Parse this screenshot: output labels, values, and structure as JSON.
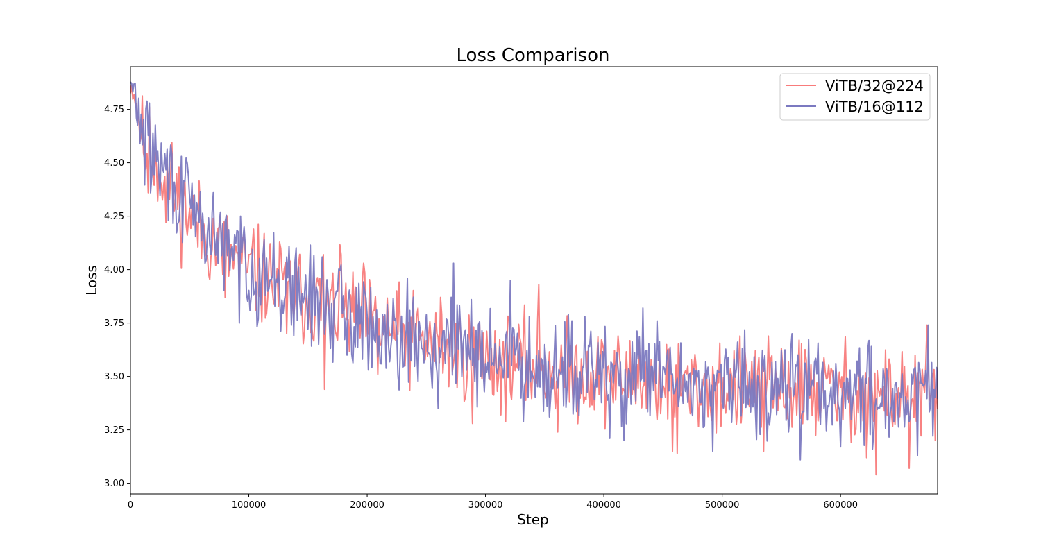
{
  "chart_data": {
    "type": "line",
    "title": "Loss Comparison",
    "xlabel": "Step",
    "ylabel": "Loss",
    "xlim": [
      0,
      682000
    ],
    "ylim": [
      2.95,
      4.95
    ],
    "xticks": [
      0,
      100000,
      200000,
      300000,
      400000,
      500000,
      600000
    ],
    "xtick_labels": [
      "0",
      "100000",
      "200000",
      "300000",
      "400000",
      "500000",
      "600000"
    ],
    "yticks": [
      3.0,
      3.25,
      3.5,
      3.75,
      4.0,
      4.25,
      4.5,
      4.75
    ],
    "ytick_labels": [
      "3.00",
      "3.25",
      "3.50",
      "3.75",
      "4.00",
      "4.25",
      "4.50",
      "4.75"
    ],
    "legend_position": "top-right",
    "sample_interval": 1000,
    "series": [
      {
        "name": "ViTB/32@224",
        "color": "#f87b7b",
        "trend": [
          [
            0,
            4.86
          ],
          [
            3000,
            4.84
          ],
          [
            6000,
            4.74
          ],
          [
            10000,
            4.62
          ],
          [
            20000,
            4.52
          ],
          [
            40000,
            4.33
          ],
          [
            60000,
            4.18
          ],
          [
            80000,
            4.08
          ],
          [
            100000,
            3.99
          ],
          [
            130000,
            3.91
          ],
          [
            160000,
            3.84
          ],
          [
            200000,
            3.75
          ],
          [
            250000,
            3.65
          ],
          [
            300000,
            3.59
          ],
          [
            350000,
            3.54
          ],
          [
            400000,
            3.5
          ],
          [
            450000,
            3.47
          ],
          [
            500000,
            3.45
          ],
          [
            550000,
            3.44
          ],
          [
            600000,
            3.43
          ],
          [
            650000,
            3.41
          ],
          [
            682000,
            3.4
          ]
        ],
        "noise_amplitude": 0.11,
        "seed": 11,
        "spikes": [
          [
            13000,
            4.47
          ],
          [
            15000,
            4.36
          ],
          [
            30000,
            4.22
          ],
          [
            52000,
            4.3
          ],
          [
            80000,
            3.87
          ],
          [
            104000,
            4.19
          ],
          [
            127000,
            4.1
          ],
          [
            132000,
            3.7
          ],
          [
            163000,
            4.07
          ],
          [
            164000,
            3.44
          ],
          [
            178000,
            4.07
          ],
          [
            197000,
            4.03
          ],
          [
            209000,
            3.51
          ],
          [
            222000,
            3.83
          ],
          [
            262000,
            3.87
          ],
          [
            289000,
            3.28
          ],
          [
            313000,
            3.32
          ],
          [
            318000,
            3.65
          ],
          [
            345000,
            3.93
          ],
          [
            361000,
            3.24
          ],
          [
            400000,
            3.62
          ],
          [
            430000,
            3.66
          ],
          [
            458000,
            3.15
          ],
          [
            462000,
            3.14
          ],
          [
            528000,
            3.62
          ],
          [
            535000,
            3.15
          ],
          [
            565000,
            3.67
          ],
          [
            622000,
            3.12
          ],
          [
            630000,
            3.04
          ],
          [
            658000,
            3.07
          ],
          [
            673000,
            3.74
          ],
          [
            680000,
            3.2
          ]
        ]
      },
      {
        "name": "ViTB/16@112",
        "color": "#7b79c0",
        "trend": [
          [
            0,
            4.86
          ],
          [
            3000,
            4.84
          ],
          [
            6000,
            4.75
          ],
          [
            10000,
            4.64
          ],
          [
            20000,
            4.53
          ],
          [
            40000,
            4.35
          ],
          [
            60000,
            4.2
          ],
          [
            80000,
            4.1
          ],
          [
            100000,
            4.0
          ],
          [
            130000,
            3.92
          ],
          [
            160000,
            3.85
          ],
          [
            200000,
            3.76
          ],
          [
            250000,
            3.66
          ],
          [
            300000,
            3.6
          ],
          [
            350000,
            3.55
          ],
          [
            400000,
            3.51
          ],
          [
            450000,
            3.48
          ],
          [
            500000,
            3.46
          ],
          [
            550000,
            3.45
          ],
          [
            600000,
            3.44
          ],
          [
            650000,
            3.42
          ],
          [
            682000,
            3.41
          ]
        ],
        "noise_amplitude": 0.11,
        "seed": 29,
        "spikes": [
          [
            35000,
            4.54
          ],
          [
            43000,
            4.53
          ],
          [
            70000,
            4.36
          ],
          [
            93000,
            4.25
          ],
          [
            113000,
            4.14
          ],
          [
            136000,
            3.74
          ],
          [
            183000,
            3.6
          ],
          [
            201000,
            3.53
          ],
          [
            260000,
            3.35
          ],
          [
            273000,
            4.03
          ],
          [
            288000,
            3.86
          ],
          [
            321000,
            3.95
          ],
          [
            370000,
            3.79
          ],
          [
            405000,
            3.21
          ],
          [
            417000,
            3.2
          ],
          [
            433000,
            3.82
          ],
          [
            445000,
            3.76
          ],
          [
            492000,
            3.15
          ],
          [
            559000,
            3.7
          ],
          [
            566000,
            3.11
          ],
          [
            600000,
            3.17
          ],
          [
            627000,
            3.16
          ],
          [
            665000,
            3.13
          ],
          [
            674000,
            3.74
          ]
        ]
      }
    ]
  }
}
